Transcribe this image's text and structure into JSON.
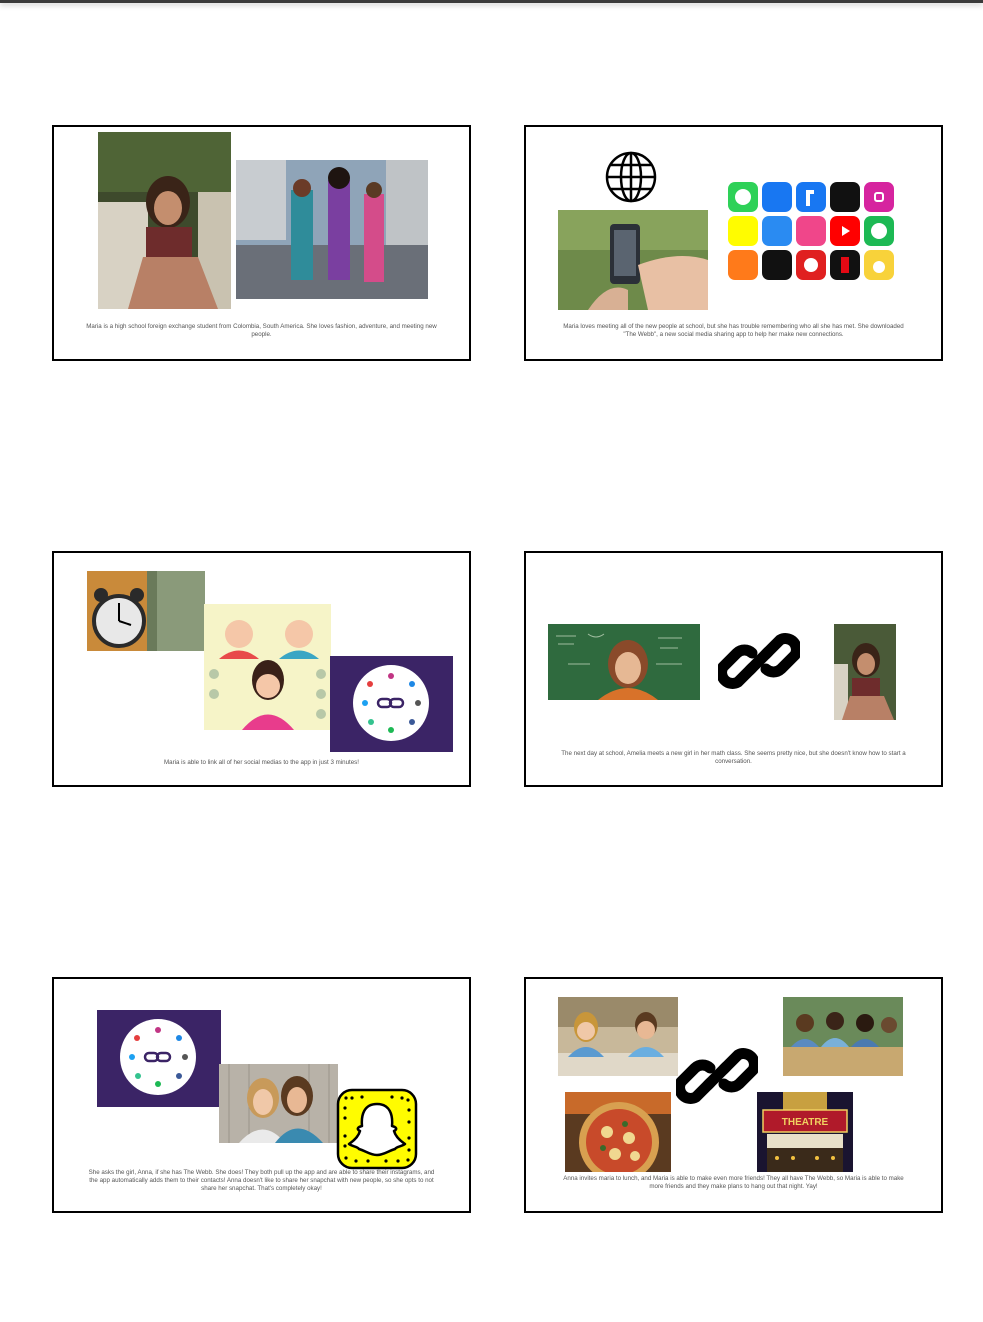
{
  "slides": [
    {
      "caption": "Maria is a high school foreign exchange student from Colombia, South America. She loves fashion, adventure, and meeting new people."
    },
    {
      "caption": "Maria loves meeting all of the new people at school, but she has trouble remembering who all she has met. She downloaded \"The Webb\", a new social media sharing app to help her make new connections."
    },
    {
      "caption": "Maria is able to link all of her social medias to the app in just 3 minutes!"
    },
    {
      "caption": "The next day at school, Amelia meets a new girl in her math class. She seems pretty nice, but she doesn't know how to start a conversation."
    },
    {
      "caption": "She asks the girl, Anna, if she has The Webb. She does! They both pull up the app and are able to share their instagrams, and the app automatically adds them to their contacts! Anna doesn't like to share her snapchat with new people, so she opts to not share her snapchat. That's completely okay!"
    },
    {
      "caption": "Anna invites maria to lunch, and Maria is able to make even more friends! They all have The Webb, so Maria is able to make more friends and they make plans to hang out that night. Yay!"
    }
  ],
  "marquee": {
    "line1": "THEATRE",
    "line2": "THEATRE"
  },
  "colors": {
    "purple": "#3b2466",
    "snap_yellow": "#fffc00"
  }
}
